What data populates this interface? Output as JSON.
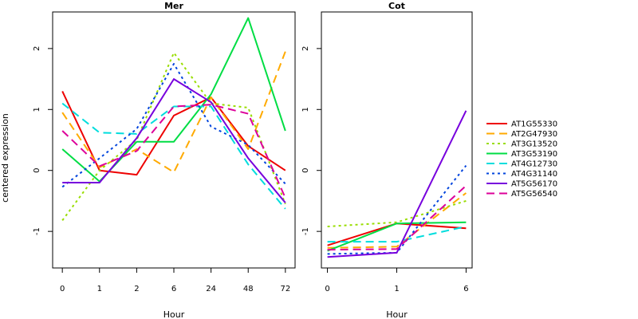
{
  "chart_data": {
    "type": "line",
    "ylabel": "centered expression",
    "ylim": [
      -1.6,
      2.6
    ],
    "yticks": [
      -1,
      0,
      1,
      2
    ],
    "grid": false,
    "legend_position": "right",
    "series_styles": [
      {
        "name": "AT1G55330",
        "color": "#ee0000",
        "dash": "solid"
      },
      {
        "name": "AT2G47930",
        "color": "#ffaa00",
        "dash": "dashed"
      },
      {
        "name": "AT3G13520",
        "color": "#99dd00",
        "dash": "dotted"
      },
      {
        "name": "AT3G53190",
        "color": "#00dd44",
        "dash": "solid"
      },
      {
        "name": "AT4G12730",
        "color": "#00dddd",
        "dash": "dashed"
      },
      {
        "name": "AT4G31140",
        "color": "#0044dd",
        "dash": "dotted"
      },
      {
        "name": "AT5G56170",
        "color": "#7700dd",
        "dash": "solid"
      },
      {
        "name": "AT5G56540",
        "color": "#dd0099",
        "dash": "dashed"
      }
    ],
    "panels": [
      {
        "title": "Mer",
        "xlabel": "Hour",
        "categories": [
          "0",
          "1",
          "2",
          "6",
          "24",
          "48",
          "72"
        ],
        "series": [
          {
            "name": "AT1G55330",
            "values": [
              1.3,
              0.0,
              -0.07,
              0.9,
              1.2,
              0.4,
              0.0
            ]
          },
          {
            "name": "AT2G47930",
            "values": [
              0.95,
              0.05,
              0.35,
              -0.03,
              1.2,
              0.35,
              1.95
            ]
          },
          {
            "name": "AT3G13520",
            "values": [
              -0.82,
              0.0,
              0.5,
              1.93,
              1.1,
              1.03,
              -0.55
            ]
          },
          {
            "name": "AT3G53190",
            "values": [
              0.35,
              -0.18,
              0.47,
              0.47,
              1.25,
              2.5,
              0.65
            ]
          },
          {
            "name": "AT4G12730",
            "values": [
              1.1,
              0.62,
              0.6,
              1.05,
              1.05,
              0.1,
              -0.63
            ]
          },
          {
            "name": "AT4G31140",
            "values": [
              -0.27,
              0.2,
              0.68,
              1.75,
              0.72,
              0.42,
              -0.22
            ]
          },
          {
            "name": "AT5G56170",
            "values": [
              -0.2,
              -0.2,
              0.53,
              1.5,
              1.12,
              0.2,
              -0.53
            ]
          },
          {
            "name": "AT5G56540",
            "values": [
              0.65,
              0.07,
              0.32,
              1.05,
              1.08,
              0.93,
              -0.45
            ]
          }
        ]
      },
      {
        "title": "Cot",
        "xlabel": "Hour",
        "categories": [
          "0",
          "1",
          "6"
        ],
        "series": [
          {
            "name": "AT1G55330",
            "values": [
              -1.23,
              -0.87,
              -0.95
            ]
          },
          {
            "name": "AT2G47930",
            "values": [
              -1.27,
              -1.25,
              -0.37
            ]
          },
          {
            "name": "AT3G13520",
            "values": [
              -0.92,
              -0.85,
              -0.5
            ]
          },
          {
            "name": "AT3G53190",
            "values": [
              -1.32,
              -0.87,
              -0.85
            ]
          },
          {
            "name": "AT4G12730",
            "values": [
              -1.17,
              -1.17,
              -0.92
            ]
          },
          {
            "name": "AT4G31140",
            "values": [
              -1.37,
              -1.35,
              0.08
            ]
          },
          {
            "name": "AT5G56170",
            "values": [
              -1.42,
              -1.35,
              0.98
            ]
          },
          {
            "name": "AT5G56540",
            "values": [
              -1.3,
              -1.29,
              -0.25
            ]
          }
        ]
      }
    ]
  }
}
